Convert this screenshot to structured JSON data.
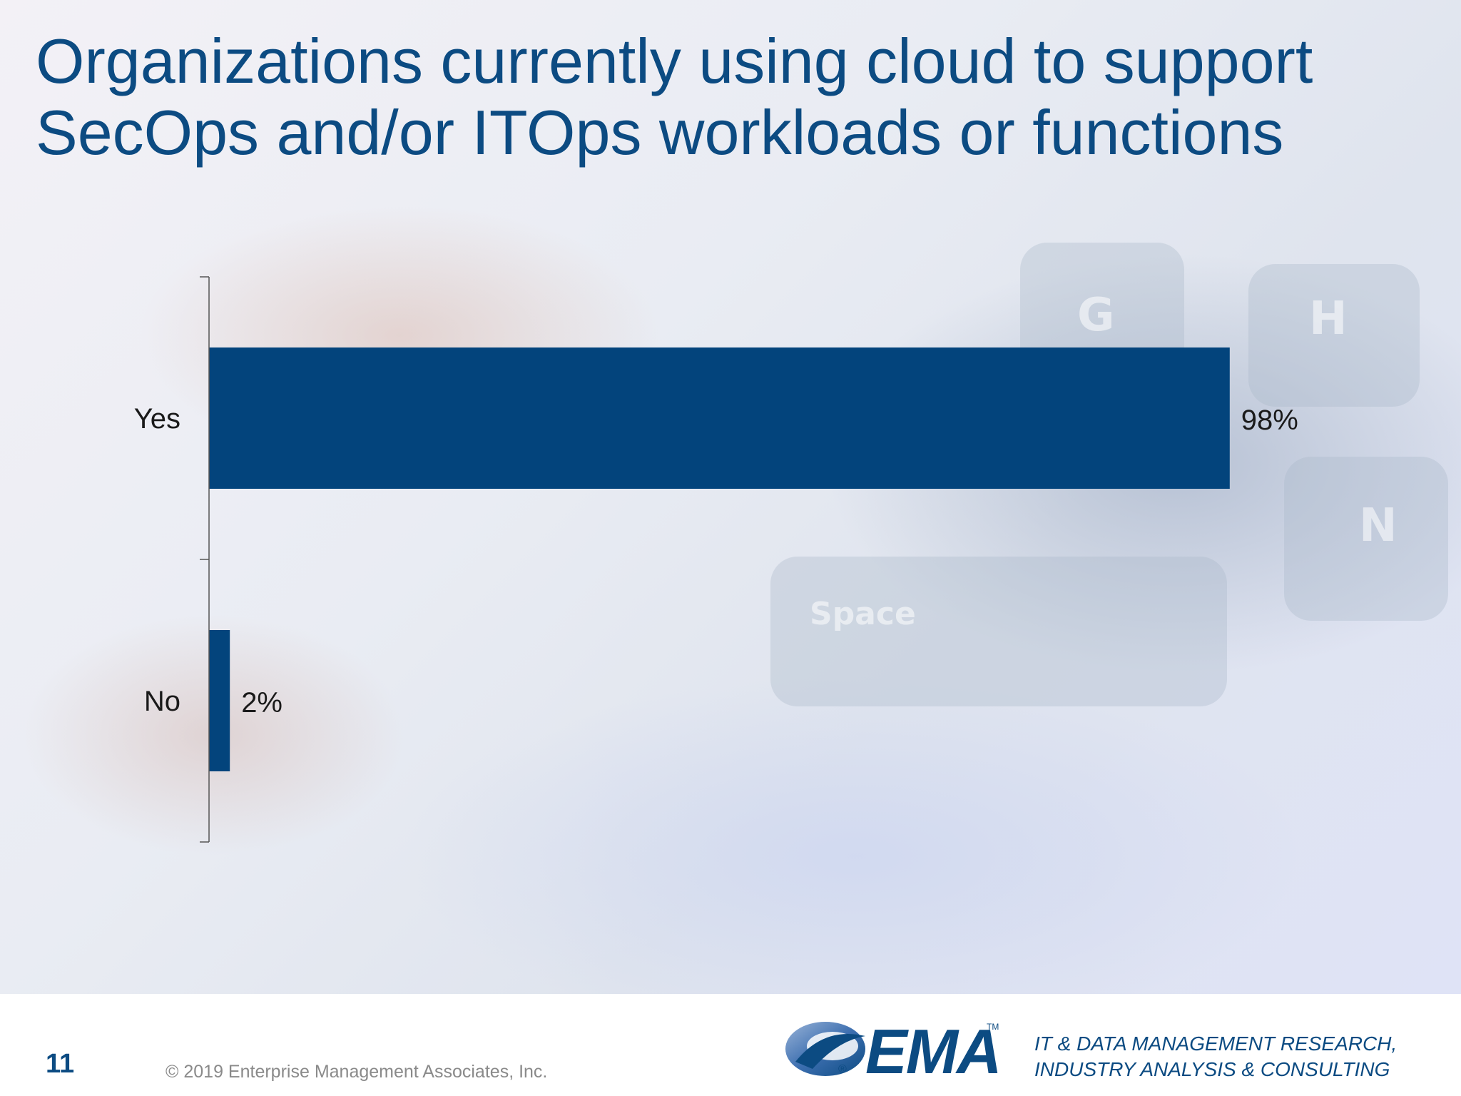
{
  "slide": {
    "title": "Organizations currently using cloud to support SecOps and/or ITOps workloads or functions",
    "page_number": "11",
    "copyright": "© 2019 Enterprise Management Associates, Inc.",
    "logo_text": "EMA",
    "logo_trademark": "TM",
    "logo_registered": "®",
    "tagline_line1": "IT & DATA MANAGEMENT RESEARCH,",
    "tagline_line2": "INDUSTRY ANALYSIS & CONSULTING",
    "background_keys": [
      "G",
      "H",
      "N",
      "Space"
    ]
  },
  "chart_data": {
    "type": "bar",
    "orientation": "horizontal",
    "categories": [
      "Yes",
      "No"
    ],
    "values": [
      98,
      2
    ],
    "value_labels": [
      "98%",
      "2%"
    ],
    "xlim": [
      0,
      100
    ],
    "grid": false,
    "legend": "none",
    "bar_color": "#03447c"
  }
}
